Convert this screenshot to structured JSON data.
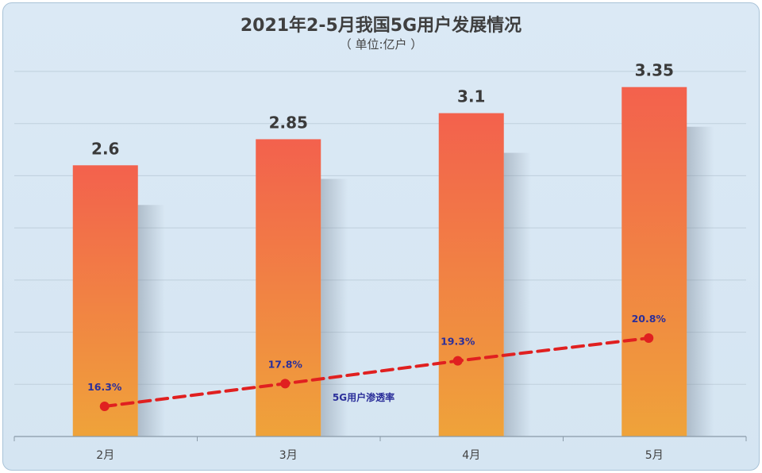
{
  "title": "2021年2-5月我国5G用户发展情况",
  "subtitle": "（ 单位:亿户 ）",
  "colors": {
    "bar_top": "#f3614d",
    "bar_bottom": "#efa33a",
    "line": "#e02020",
    "line_label": "#2b2f9a",
    "value_label": "#3a3a3a",
    "grid": "#bfcfdc",
    "axis": "#8a9aa8"
  },
  "chart_data": {
    "type": "bar",
    "categories": [
      "2月",
      "3月",
      "4月",
      "5月"
    ],
    "series": [
      {
        "values": [
          2.6,
          2.85,
          3.1,
          3.35
        ]
      }
    ],
    "line_series": {
      "name": "5G用户渗透率",
      "values": [
        16.3,
        17.8,
        19.3,
        20.8
      ],
      "labels": [
        "16.3%",
        "17.8%",
        "19.3%",
        "20.8%"
      ]
    },
    "value_labels": [
      "2.6",
      "2.85",
      "3.1",
      "3.35"
    ],
    "ylim": [
      0,
      3.5
    ],
    "grid": true,
    "xlabel": "",
    "ylabel": ""
  }
}
